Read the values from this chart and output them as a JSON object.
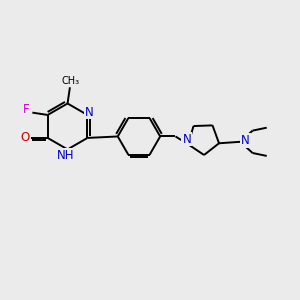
{
  "bg_color": "#ebebeb",
  "bond_color": "#000000",
  "N_color": "#0000cc",
  "O_color": "#cc0000",
  "F_color": "#cc00cc",
  "line_width": 1.4,
  "font_size": 8.5,
  "fig_size": [
    3.0,
    3.0
  ],
  "dpi": 100,
  "xlim": [
    0,
    10
  ],
  "ylim": [
    0,
    10
  ]
}
